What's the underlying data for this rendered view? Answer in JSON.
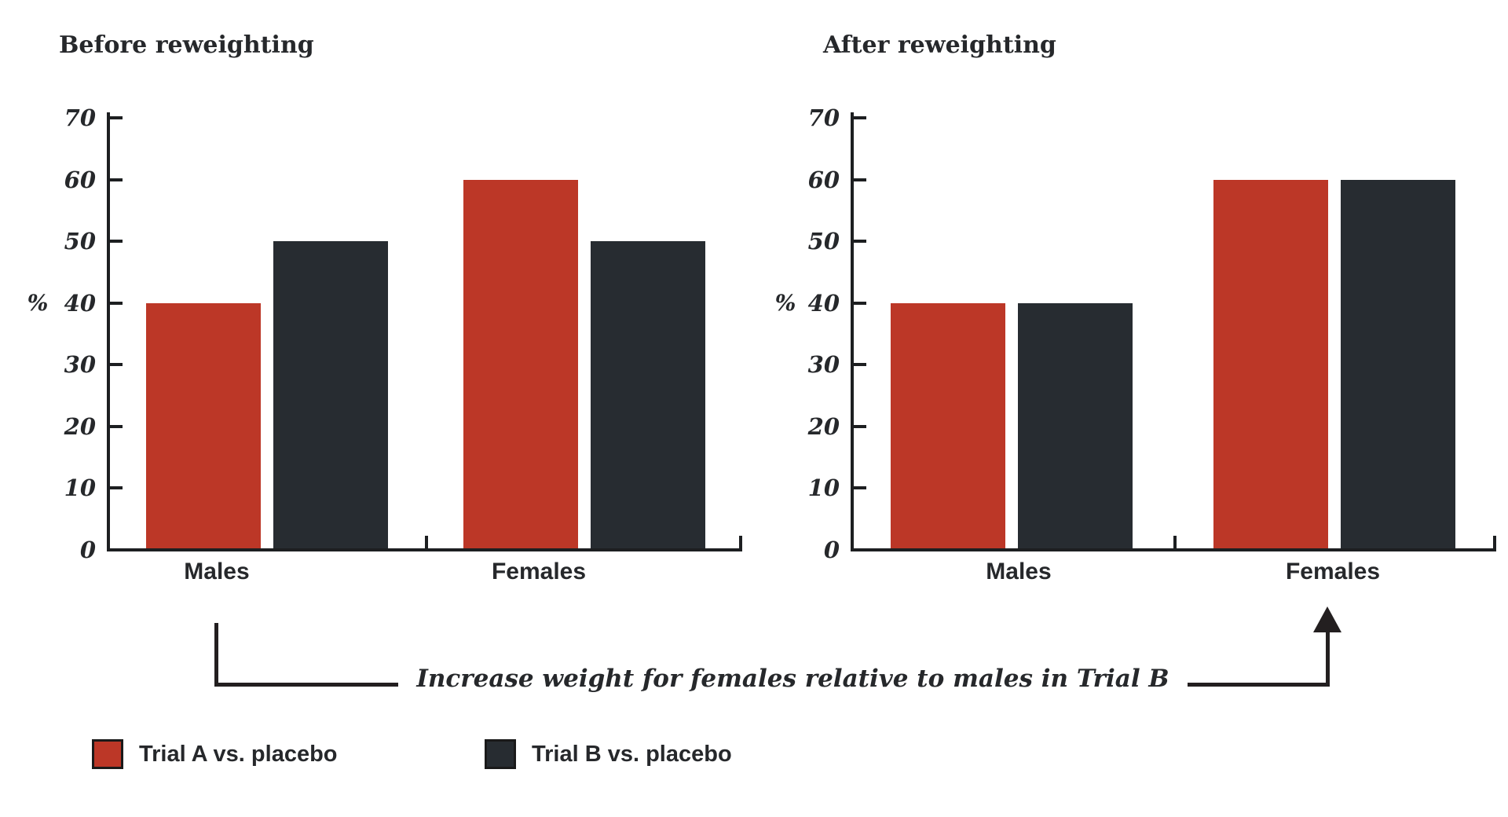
{
  "chart_data": [
    {
      "type": "bar",
      "title": "Before reweighting",
      "ylabel": "%",
      "categories": [
        "Males",
        "Females"
      ],
      "series": [
        {
          "name": "Trial A vs. placebo",
          "color": "#BC3727",
          "values": [
            40,
            60
          ]
        },
        {
          "name": "Trial B vs. placebo",
          "color": "#272C31",
          "values": [
            50,
            50
          ]
        }
      ],
      "yticks": [
        0,
        10,
        20,
        30,
        40,
        50,
        60,
        70
      ],
      "ylim": [
        0,
        70
      ],
      "grid": false,
      "legend_position": "bottom"
    },
    {
      "type": "bar",
      "title": "After reweighting",
      "ylabel": "%",
      "categories": [
        "Males",
        "Females"
      ],
      "series": [
        {
          "name": "Trial A vs. placebo",
          "color": "#BC3727",
          "values": [
            40,
            60
          ]
        },
        {
          "name": "Trial B vs. placebo",
          "color": "#272C31",
          "values": [
            40,
            60
          ]
        }
      ],
      "yticks": [
        0,
        10,
        20,
        30,
        40,
        50,
        60,
        70
      ],
      "ylim": [
        0,
        70
      ],
      "grid": false,
      "legend_position": "bottom"
    }
  ],
  "annotation": {
    "text": "Increase weight for females relative to males in Trial B"
  },
  "legend": [
    {
      "label": "Trial A vs. placebo",
      "color": "#BC3727"
    },
    {
      "label": "Trial B vs. placebo",
      "color": "#272C31"
    }
  ],
  "colors": {
    "trial_a": "#BC3727",
    "trial_b": "#272C31",
    "line": "#231f20",
    "text": "#26282b",
    "background": "#ffffff"
  }
}
